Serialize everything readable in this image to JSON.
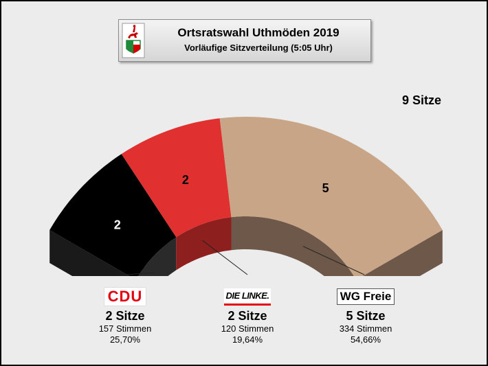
{
  "header": {
    "title": "Ortsratswahl Uthmöden 2019",
    "subtitle": "Vorläufige Sitzverteilung (5:05 Uhr)"
  },
  "total_label": "9 Sitze",
  "parties": [
    {
      "logo": "CDU",
      "seats_label": "2 Sitze",
      "votes_label": "157 Stimmen",
      "percent_label": "25,70%",
      "color": "#000000",
      "side_color": "#2a2a2a"
    },
    {
      "logo": "DIE LINKE.",
      "seats_label": "2 Sitze",
      "votes_label": "120 Stimmen",
      "percent_label": "19,64%",
      "color": "#e03030",
      "side_color": "#8e1f1f"
    },
    {
      "logo": "WG Freie",
      "seats_label": "5 Sitze",
      "votes_label": "334 Stimmen",
      "percent_label": "54,66%",
      "color": "#c9a587",
      "side_color": "#6e5849"
    }
  ],
  "chart_data": {
    "type": "pie",
    "subtype": "parliament-semicircle-3d",
    "total_seats": 9,
    "categories": [
      "CDU",
      "DIE LINKE.",
      "WG Freie"
    ],
    "values": [
      2,
      2,
      5
    ],
    "seat_labels": [
      "2",
      "2",
      "5"
    ],
    "vote_counts": [
      157,
      120,
      334
    ],
    "vote_shares": [
      25.7,
      19.64,
      54.66
    ],
    "colors": [
      "#000000",
      "#e03030",
      "#c9a587"
    ]
  }
}
